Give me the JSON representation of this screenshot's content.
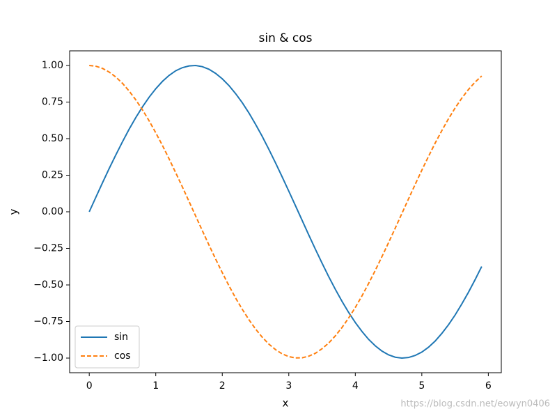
{
  "chart_data": {
    "type": "line",
    "title": "sin & cos",
    "xlabel": "x",
    "ylabel": "y",
    "x": [
      0,
      0.1,
      0.2,
      0.3,
      0.4,
      0.5,
      0.6,
      0.7,
      0.8,
      0.9,
      1.0,
      1.1,
      1.2,
      1.3,
      1.4,
      1.5,
      1.6,
      1.7,
      1.8,
      1.9,
      2.0,
      2.1,
      2.2,
      2.3,
      2.4,
      2.5,
      2.6,
      2.7,
      2.8,
      2.9,
      3.0,
      3.1,
      3.2,
      3.3,
      3.4,
      3.5,
      3.6,
      3.7,
      3.8,
      3.9,
      4.0,
      4.1,
      4.2,
      4.3,
      4.4,
      4.5,
      4.6,
      4.7,
      4.8,
      4.9,
      5.0,
      5.1,
      5.2,
      5.3,
      5.4,
      5.5,
      5.6,
      5.7,
      5.8,
      5.9
    ],
    "series": [
      {
        "name": "sin",
        "color": "#1f77b4",
        "linestyle": "solid",
        "values": [
          0,
          0.1,
          0.199,
          0.296,
          0.389,
          0.479,
          0.565,
          0.644,
          0.717,
          0.783,
          0.841,
          0.891,
          0.932,
          0.964,
          0.985,
          0.997,
          1.0,
          0.992,
          0.974,
          0.946,
          0.909,
          0.863,
          0.808,
          0.746,
          0.676,
          0.598,
          0.516,
          0.427,
          0.335,
          0.239,
          0.141,
          0.042,
          -0.058,
          -0.158,
          -0.256,
          -0.351,
          -0.443,
          -0.53,
          -0.612,
          -0.688,
          -0.757,
          -0.818,
          -0.872,
          -0.916,
          -0.952,
          -0.978,
          -0.994,
          -1.0,
          -0.996,
          -0.982,
          -0.959,
          -0.926,
          -0.884,
          -0.832,
          -0.773,
          -0.706,
          -0.631,
          -0.551,
          -0.465,
          -0.374
        ]
      },
      {
        "name": "cos",
        "color": "#ff7f0e",
        "linestyle": "dashed",
        "values": [
          1,
          0.995,
          0.98,
          0.955,
          0.921,
          0.878,
          0.825,
          0.765,
          0.697,
          0.622,
          0.54,
          0.454,
          0.362,
          0.267,
          0.17,
          0.071,
          -0.029,
          -0.129,
          -0.227,
          -0.323,
          -0.416,
          -0.505,
          -0.589,
          -0.666,
          -0.737,
          -0.801,
          -0.857,
          -0.904,
          -0.942,
          -0.971,
          -0.99,
          -0.999,
          -0.998,
          -0.987,
          -0.967,
          -0.936,
          -0.897,
          -0.848,
          -0.791,
          -0.726,
          -0.654,
          -0.575,
          -0.49,
          -0.401,
          -0.307,
          -0.211,
          -0.112,
          -0.012,
          0.088,
          0.187,
          0.284,
          0.378,
          0.469,
          0.554,
          0.635,
          0.709,
          0.776,
          0.835,
          0.886,
          0.928
        ]
      }
    ],
    "xlim": [
      -0.295,
      6.195
    ],
    "xticks": [
      0,
      1,
      2,
      3,
      4,
      5,
      6
    ],
    "ylim": [
      -1.1,
      1.1
    ],
    "yticks": [
      {
        "value": -1,
        "label": "−1.00"
      },
      {
        "value": -0.75,
        "label": "−0.75"
      },
      {
        "value": -0.5,
        "label": "−0.50"
      },
      {
        "value": -0.25,
        "label": "−0.25"
      },
      {
        "value": 0,
        "label": "0.00"
      },
      {
        "value": 0.25,
        "label": "0.25"
      },
      {
        "value": 0.5,
        "label": "0.50"
      },
      {
        "value": 0.75,
        "label": "0.75"
      },
      {
        "value": 1,
        "label": "1.00"
      }
    ],
    "grid": false,
    "legend": "lower left"
  },
  "watermark": "https://blog.csdn.net/eowyn0406"
}
